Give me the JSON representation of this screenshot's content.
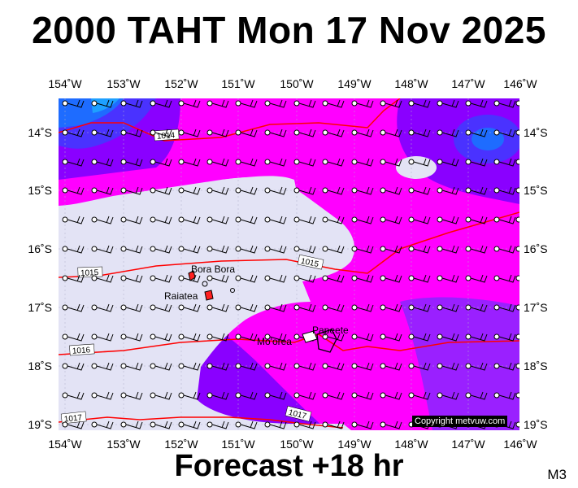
{
  "title": "2000 TAHT Mon 17 Nov 2025",
  "footer": "Forecast +18 hr",
  "model_code": "M3",
  "copyright": "Copyright metvuw.com",
  "axes": {
    "lon_labels": [
      "154˚W",
      "153˚W",
      "152˚W",
      "151˚W",
      "150˚W",
      "149˚W",
      "148˚W",
      "147˚W",
      "146˚W"
    ],
    "lat_labels": [
      "14˚S",
      "15˚S",
      "16˚S",
      "17˚S",
      "18˚S",
      "19˚S"
    ]
  },
  "places": [
    "Bora Bora",
    "Raiatea",
    "Mo'orea",
    "Papeete"
  ],
  "isobar_labels": [
    "1014",
    "1015",
    "1015",
    "1016",
    "1017",
    "1017"
  ],
  "colors": {
    "low_wind": "#e3e3f5",
    "medium_wind": "#ff00ff",
    "strong_wind": "#8a00ff",
    "very_strong": "#4a32ff",
    "max_wind": "#1ea0ff",
    "isobar": "#ff0000",
    "land": "#ff2020"
  }
}
